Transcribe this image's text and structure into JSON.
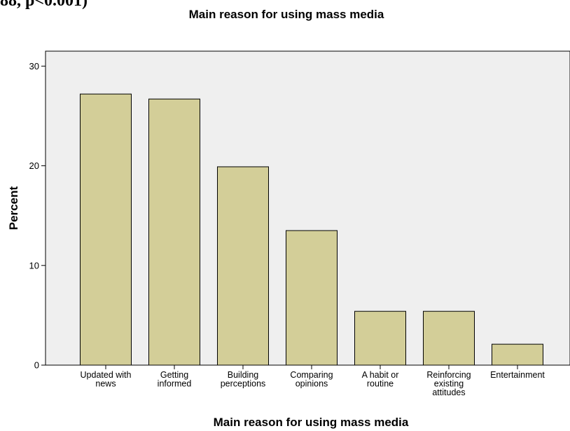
{
  "page_fragment": "88, p<0.001)",
  "chart_data": {
    "type": "bar",
    "title": "Main reason for using mass media",
    "xlabel": "Main reason for using mass media",
    "ylabel": "Percent",
    "categories": [
      [
        "Updated with",
        "news"
      ],
      [
        "Getting",
        "informed"
      ],
      [
        "Building",
        "perceptions"
      ],
      [
        "Comparing",
        "opinions"
      ],
      [
        "A habit or",
        "routine"
      ],
      [
        "Reinforcing",
        "existing",
        "attitudes"
      ],
      [
        "Entertainment"
      ]
    ],
    "values": [
      27.2,
      26.7,
      19.9,
      13.5,
      5.4,
      5.4,
      2.1
    ],
    "ylim": [
      0,
      31.5
    ],
    "yticks": [
      0,
      10,
      20,
      30
    ],
    "grid": false,
    "legend": "none",
    "colors": {
      "bar_fill": "#d3ce98",
      "bar_stroke": "#000000",
      "plot_background": "#efefef"
    }
  }
}
